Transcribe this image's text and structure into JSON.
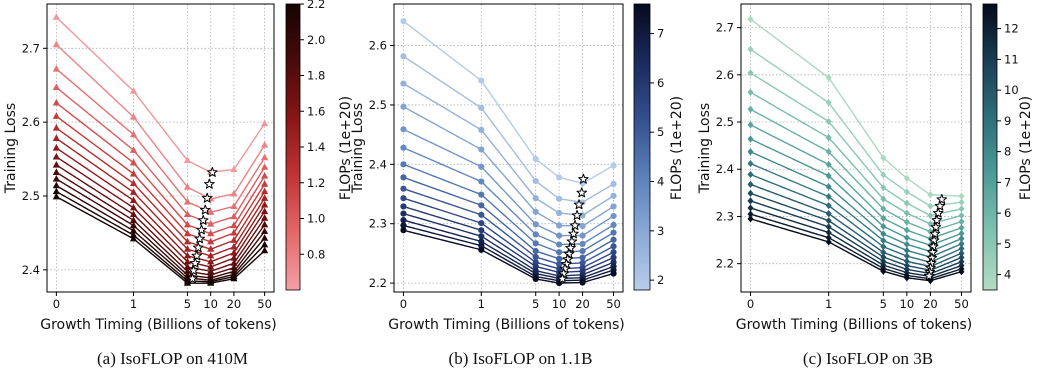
{
  "chart_data": [
    {
      "type": "line",
      "caption": "(a) IsoFLOP on 410M",
      "xlabel": "Growth Timing (Billions of tokens)",
      "ylabel": "Training Loss",
      "x": [
        0,
        1,
        5,
        10,
        20,
        50
      ],
      "x_ticks": [
        "0",
        "1",
        "5",
        "10",
        "20",
        "50"
      ],
      "y_ticks": [
        2.4,
        2.5,
        2.6,
        2.7
      ],
      "ylim": [
        2.37,
        2.76
      ],
      "x_scale": "symlog",
      "grid": true,
      "marker": "triangle",
      "colorbar": {
        "label": "FLOPs (1e+20)",
        "range": [
          0.6,
          2.2
        ],
        "ticks": [
          "0.8",
          "1.0",
          "1.2",
          "1.4",
          "1.6",
          "1.8",
          "2.0",
          "2.2"
        ],
        "ticks_value": [
          0.8,
          1.0,
          1.2,
          1.4,
          1.6,
          1.8,
          2.0,
          2.2
        ],
        "colormap": [
          "#f2a0a6",
          "#e46868",
          "#c03434",
          "#8a1616",
          "#4a0a0a",
          "#150303"
        ]
      },
      "series": [
        {
          "value": 0.65,
          "values": [
            2.742,
            2.642,
            2.548,
            2.532,
            2.536,
            2.598
          ]
        },
        {
          "value": 0.76,
          "values": [
            2.705,
            2.607,
            2.512,
            2.496,
            2.503,
            2.569
          ]
        },
        {
          "value": 0.87,
          "values": [
            2.672,
            2.583,
            2.492,
            2.478,
            2.486,
            2.552
          ]
        },
        {
          "value": 0.98,
          "values": [
            2.647,
            2.562,
            2.475,
            2.462,
            2.472,
            2.539
          ]
        },
        {
          "value": 1.09,
          "values": [
            2.626,
            2.545,
            2.461,
            2.449,
            2.46,
            2.527
          ]
        },
        {
          "value": 1.2,
          "values": [
            2.608,
            2.53,
            2.449,
            2.438,
            2.45,
            2.516
          ]
        },
        {
          "value": 1.31,
          "values": [
            2.592,
            2.517,
            2.438,
            2.428,
            2.44,
            2.506
          ]
        },
        {
          "value": 1.42,
          "values": [
            2.578,
            2.505,
            2.428,
            2.419,
            2.431,
            2.497
          ]
        },
        {
          "value": 1.53,
          "values": [
            2.565,
            2.494,
            2.419,
            2.411,
            2.423,
            2.488
          ]
        },
        {
          "value": 1.64,
          "values": [
            2.553,
            2.484,
            2.411,
            2.404,
            2.416,
            2.479
          ]
        },
        {
          "value": 1.75,
          "values": [
            2.542,
            2.475,
            2.404,
            2.398,
            2.409,
            2.47
          ]
        },
        {
          "value": 1.86,
          "values": [
            2.532,
            2.467,
            2.398,
            2.393,
            2.403,
            2.461
          ]
        },
        {
          "value": 1.97,
          "values": [
            2.523,
            2.46,
            2.393,
            2.389,
            2.398,
            2.452
          ]
        },
        {
          "value": 2.08,
          "values": [
            2.514,
            2.453,
            2.389,
            2.386,
            2.394,
            2.443
          ]
        },
        {
          "value": 2.19,
          "values": [
            2.506,
            2.447,
            2.385,
            2.384,
            2.391,
            2.434
          ]
        },
        {
          "value": 2.2,
          "values": [
            2.499,
            2.442,
            2.382,
            2.382,
            2.388,
            2.426
          ]
        }
      ],
      "optimum": {
        "x": [
          10.5,
          9.6,
          9.0,
          8.5,
          8.0,
          7.6,
          7.2,
          6.9,
          6.6,
          6.3,
          6.0,
          5.8
        ],
        "y": [
          2.532,
          2.516,
          2.497,
          2.481,
          2.467,
          2.454,
          2.442,
          2.43,
          2.419,
          2.409,
          2.399,
          2.388
        ]
      }
    },
    {
      "type": "line",
      "caption": "(b) IsoFLOP on 1.1B",
      "xlabel": "Growth Timing (Billions of tokens)",
      "ylabel": "Training Loss",
      "x": [
        0,
        1,
        5,
        10,
        20,
        50
      ],
      "x_ticks": [
        "0",
        "1",
        "5",
        "10",
        "20",
        "50"
      ],
      "y_ticks": [
        2.2,
        2.3,
        2.4,
        2.5,
        2.6
      ],
      "ylim": [
        2.185,
        2.67
      ],
      "x_scale": "symlog",
      "grid": true,
      "marker": "circle",
      "colorbar": {
        "label": "FLOPs (1e+20)",
        "range": [
          1.8,
          7.6
        ],
        "ticks": [
          "2",
          "3",
          "4",
          "5",
          "6",
          "7"
        ],
        "ticks_value": [
          2,
          3,
          4,
          5,
          6,
          7
        ],
        "colormap": [
          "#b8cdea",
          "#8aa9d6",
          "#5b7fb8",
          "#344f8e",
          "#1a2a5c",
          "#070a20"
        ]
      },
      "series": [
        {
          "value": 1.9,
          "values": [
            2.641,
            2.541,
            2.409,
            2.378,
            2.368,
            2.398
          ]
        },
        {
          "value": 2.3,
          "values": [
            2.582,
            2.495,
            2.372,
            2.342,
            2.336,
            2.367
          ]
        },
        {
          "value": 2.7,
          "values": [
            2.536,
            2.458,
            2.343,
            2.318,
            2.314,
            2.347
          ]
        },
        {
          "value": 3.1,
          "values": [
            2.497,
            2.425,
            2.32,
            2.297,
            2.296,
            2.329
          ]
        },
        {
          "value": 3.5,
          "values": [
            2.459,
            2.396,
            2.299,
            2.28,
            2.28,
            2.313
          ]
        },
        {
          "value": 3.9,
          "values": [
            2.428,
            2.371,
            2.282,
            2.265,
            2.266,
            2.298
          ]
        },
        {
          "value": 4.3,
          "values": [
            2.4,
            2.349,
            2.267,
            2.252,
            2.254,
            2.285
          ]
        },
        {
          "value": 4.7,
          "values": [
            2.378,
            2.331,
            2.254,
            2.241,
            2.243,
            2.273
          ]
        },
        {
          "value": 5.1,
          "values": [
            2.359,
            2.315,
            2.244,
            2.232,
            2.234,
            2.262
          ]
        },
        {
          "value": 5.5,
          "values": [
            2.343,
            2.301,
            2.235,
            2.224,
            2.226,
            2.252
          ]
        },
        {
          "value": 5.9,
          "values": [
            2.329,
            2.289,
            2.228,
            2.218,
            2.22,
            2.243
          ]
        },
        {
          "value": 6.3,
          "values": [
            2.317,
            2.279,
            2.221,
            2.212,
            2.214,
            2.235
          ]
        },
        {
          "value": 6.7,
          "values": [
            2.306,
            2.27,
            2.216,
            2.208,
            2.209,
            2.228
          ]
        },
        {
          "value": 7.1,
          "values": [
            2.297,
            2.263,
            2.211,
            2.204,
            2.205,
            2.222
          ]
        },
        {
          "value": 7.5,
          "values": [
            2.289,
            2.256,
            2.207,
            2.2,
            2.201,
            2.216
          ]
        }
      ],
      "optimum": {
        "x": [
          20.5,
          19.5,
          18.0,
          17.0,
          16.0,
          15.3,
          14.6,
          14.0,
          13.4,
          12.9,
          12.4,
          11.9,
          11.4,
          11.0
        ],
        "y": [
          2.375,
          2.352,
          2.332,
          2.314,
          2.297,
          2.283,
          2.27,
          2.259,
          2.249,
          2.24,
          2.232,
          2.224,
          2.216,
          2.207
        ]
      }
    },
    {
      "type": "line",
      "caption": "(c) IsoFLOP on 3B",
      "xlabel": "Growth Timing (Billions of tokens)",
      "ylabel": "Training Loss",
      "x": [
        0,
        1,
        5,
        10,
        20,
        50
      ],
      "x_ticks": [
        "0",
        "1",
        "5",
        "10",
        "20",
        "50"
      ],
      "y_ticks": [
        2.2,
        2.3,
        2.4,
        2.5,
        2.6,
        2.7
      ],
      "ylim": [
        2.14,
        2.75
      ],
      "x_scale": "symlog",
      "grid": true,
      "marker": "diamond",
      "colorbar": {
        "label": "FLOPs (1e+20)",
        "range": [
          3.5,
          12.8
        ],
        "ticks": [
          "4",
          "5",
          "6",
          "7",
          "8",
          "9",
          "10",
          "11",
          "12"
        ],
        "ticks_value": [
          4,
          5,
          6,
          7,
          8,
          9,
          10,
          11,
          12
        ],
        "colormap": [
          "#b3dcc4",
          "#80c2b0",
          "#4e9c98",
          "#2f6f7b",
          "#1a3e55",
          "#060a1a"
        ]
      },
      "series": [
        {
          "value": 3.8,
          "values": [
            2.718,
            2.594,
            2.424,
            2.381,
            2.346,
            2.343
          ]
        },
        {
          "value": 4.4,
          "values": [
            2.654,
            2.541,
            2.388,
            2.352,
            2.322,
            2.33
          ]
        },
        {
          "value": 5.0,
          "values": [
            2.604,
            2.501,
            2.361,
            2.328,
            2.302,
            2.316
          ]
        },
        {
          "value": 5.6,
          "values": [
            2.563,
            2.467,
            2.337,
            2.307,
            2.284,
            2.302
          ]
        },
        {
          "value": 6.2,
          "values": [
            2.527,
            2.437,
            2.316,
            2.288,
            2.268,
            2.289
          ]
        },
        {
          "value": 6.8,
          "values": [
            2.494,
            2.41,
            2.296,
            2.271,
            2.253,
            2.276
          ]
        },
        {
          "value": 7.4,
          "values": [
            2.464,
            2.386,
            2.279,
            2.255,
            2.239,
            2.264
          ]
        },
        {
          "value": 8.0,
          "values": [
            2.437,
            2.363,
            2.263,
            2.241,
            2.226,
            2.253
          ]
        },
        {
          "value": 8.6,
          "values": [
            2.412,
            2.342,
            2.249,
            2.228,
            2.214,
            2.242
          ]
        },
        {
          "value": 9.2,
          "values": [
            2.389,
            2.323,
            2.236,
            2.216,
            2.203,
            2.232
          ]
        },
        {
          "value": 9.8,
          "values": [
            2.368,
            2.306,
            2.224,
            2.205,
            2.194,
            2.222
          ]
        },
        {
          "value": 10.4,
          "values": [
            2.349,
            2.291,
            2.214,
            2.196,
            2.186,
            2.213
          ]
        },
        {
          "value": 11.0,
          "values": [
            2.333,
            2.278,
            2.205,
            2.188,
            2.179,
            2.204
          ]
        },
        {
          "value": 11.6,
          "values": [
            2.318,
            2.266,
            2.197,
            2.181,
            2.173,
            2.196
          ]
        },
        {
          "value": 12.2,
          "values": [
            2.305,
            2.255,
            2.19,
            2.175,
            2.168,
            2.189
          ]
        },
        {
          "value": 12.7,
          "values": [
            2.295,
            2.246,
            2.184,
            2.17,
            2.164,
            2.183
          ]
        }
      ],
      "optimum": {
        "x": [
          28.0,
          26.5,
          25.2,
          24.2,
          23.5,
          22.9,
          22.3,
          21.8,
          21.3,
          20.9,
          20.5,
          20.1,
          19.7,
          19.3
        ],
        "y": [
          2.336,
          2.322,
          2.307,
          2.292,
          2.277,
          2.263,
          2.249,
          2.236,
          2.224,
          2.212,
          2.201,
          2.191,
          2.182,
          2.174
        ]
      }
    }
  ]
}
